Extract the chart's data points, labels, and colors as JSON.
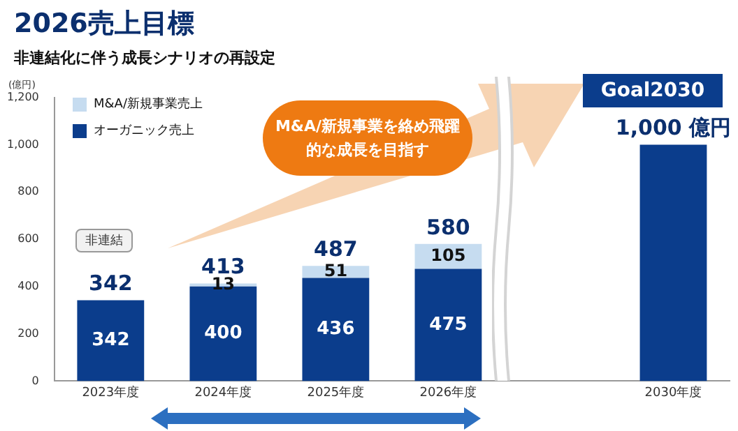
{
  "chart_data": {
    "type": "bar",
    "title": "2026売上目標",
    "subtitle": "非連結化に伴う成長シナリオの再設定",
    "ylabel": "(億円)",
    "categories": [
      "2023年度",
      "2024年度",
      "2025年度",
      "2026年度",
      null,
      "2030年度"
    ],
    "stacked": true,
    "series": [
      {
        "name": "オーガニック売上",
        "color": "#0b3d8c",
        "values": [
          342,
          400,
          436,
          475,
          null,
          1000
        ],
        "value_labels": [
          "342",
          "400",
          "436",
          "475",
          null,
          null
        ]
      },
      {
        "name": "M&A/新規事業売上",
        "color": "#c6dcf0",
        "values": [
          null,
          13,
          51,
          105,
          null,
          null
        ],
        "value_labels": [
          null,
          "13",
          "51",
          "105",
          null,
          null
        ]
      }
    ],
    "totals": [
      "342",
      "413",
      "487",
      "580",
      null,
      "1,000 億円"
    ],
    "ylim": [
      0,
      1200
    ],
    "yticks": [
      0,
      200,
      400,
      600,
      800,
      {
        "value": 1000,
        "label": "1,000"
      },
      {
        "value": 1200,
        "label": "1,200"
      }
    ],
    "grid": false,
    "legend": "top left",
    "annotations": [
      "非連結",
      "M&A/新規事業を絡め飛躍的な成長を目指す",
      "Goal2030"
    ]
  }
}
